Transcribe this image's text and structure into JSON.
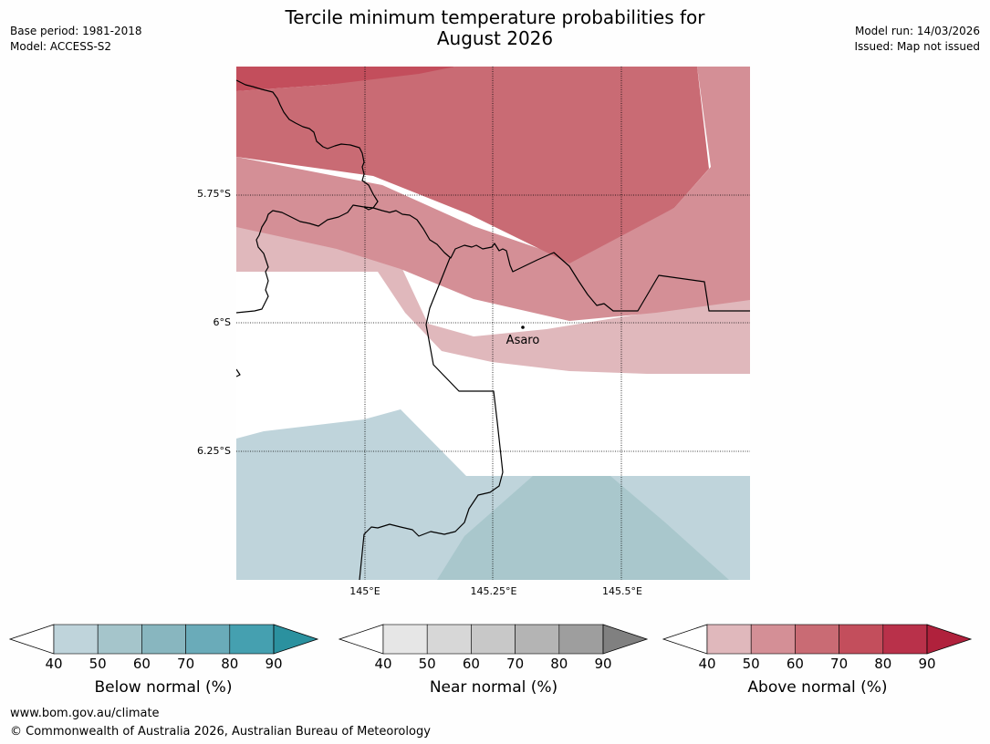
{
  "title": {
    "line1": "Tercile minimum temperature probabilities for",
    "line2": "August 2026"
  },
  "meta_left": {
    "base_period": "Base period: 1981-2018",
    "model": "Model: ACCESS-S2"
  },
  "meta_right": {
    "model_run": "Model run: 14/03/2026",
    "issued": "Issued: Map not issued"
  },
  "map": {
    "lat_labels": [
      "5.75°S",
      "6°S",
      "6.25°S"
    ],
    "lon_labels": [
      "145°E",
      "145.25°E",
      "145.5°E"
    ],
    "place": {
      "name": "Asaro"
    }
  },
  "colorbars": [
    {
      "name": "Below normal (%)",
      "ticks": [
        "40",
        "50",
        "60",
        "70",
        "80",
        "90"
      ],
      "colors": [
        "#bfd4db",
        "#a5c5cb",
        "#88b6bf",
        "#6aabb9",
        "#45a0b0",
        "#2b919f"
      ]
    },
    {
      "name": "Near normal (%)",
      "ticks": [
        "40",
        "50",
        "60",
        "70",
        "80",
        "90"
      ],
      "colors": [
        "#e6e6e6",
        "#d7d7d7",
        "#c8c8c8",
        "#b4b4b4",
        "#9e9e9e",
        "#808080"
      ]
    },
    {
      "name": "Above normal (%)",
      "ticks": [
        "40",
        "50",
        "60",
        "70",
        "80",
        "90"
      ],
      "colors": [
        "#e0b8bc",
        "#d48f96",
        "#c96b74",
        "#c34e5c",
        "#b9314a",
        "#b0213c"
      ]
    }
  ],
  "footer": {
    "website": "www.bom.gov.au/climate",
    "copyright": "© Commonwealth of Australia 2026, Australian Bureau of Meteorology"
  }
}
